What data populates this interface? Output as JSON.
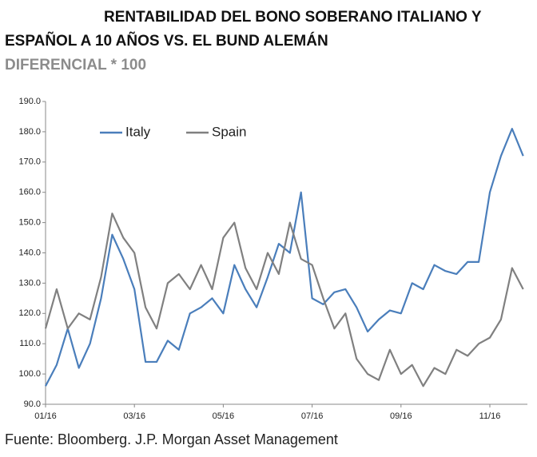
{
  "chart_data": {
    "type": "line",
    "title": [
      "RENTABILIDAD DEL BONO SOBERANO ITALIANO Y",
      "ESPAÑOL A 10 AÑOS VS. EL BUND ALEMÁN"
    ],
    "subtitle": "DIFERENCIAL * 100",
    "source": "Fuente: Bloomberg. J.P. Morgan Asset Management",
    "categories": [
      "01/16",
      null,
      null,
      null,
      null,
      null,
      null,
      null,
      "03/16",
      null,
      null,
      null,
      null,
      null,
      null,
      null,
      "05/16",
      null,
      null,
      null,
      null,
      null,
      null,
      null,
      "07/16",
      null,
      null,
      null,
      null,
      null,
      null,
      null,
      "09/16",
      null,
      null,
      null,
      null,
      null,
      null,
      null,
      "11/16",
      null,
      null,
      null
    ],
    "series": [
      {
        "name": "Italy",
        "color": "#4a7ebb",
        "values": [
          96,
          103,
          115,
          102,
          110,
          125,
          146,
          138,
          128,
          104,
          104,
          111,
          108,
          120,
          122,
          125,
          120,
          136,
          128,
          122,
          132,
          143,
          140,
          160,
          125,
          123,
          127,
          128,
          122,
          114,
          118,
          121,
          120,
          130,
          128,
          136,
          134,
          133,
          137,
          137,
          160,
          172,
          181,
          172
        ]
      },
      {
        "name": "Spain",
        "color": "#808080",
        "values": [
          115,
          128,
          115,
          120,
          118,
          132,
          153,
          145,
          140,
          122,
          115,
          130,
          133,
          128,
          136,
          128,
          145,
          150,
          135,
          128,
          140,
          133,
          150,
          138,
          136,
          125,
          115,
          120,
          105,
          100,
          98,
          108,
          100,
          103,
          96,
          102,
          100,
          108,
          106,
          110,
          112,
          118,
          135,
          128
        ]
      }
    ],
    "ylim": [
      90,
      190
    ],
    "yticks": [
      {
        "value": 90,
        "label": "90.0"
      },
      {
        "value": 100,
        "label": "100.0"
      },
      {
        "value": 110,
        "label": "110.0"
      },
      {
        "value": 120,
        "label": "120.0"
      },
      {
        "value": 130,
        "label": "130.0"
      },
      {
        "value": 140,
        "label": "140.0"
      },
      {
        "value": 150,
        "label": "150.0"
      },
      {
        "value": 160,
        "label": "160.0"
      },
      {
        "value": 170,
        "label": "170.0"
      },
      {
        "value": 180,
        "label": "180.0"
      },
      {
        "value": 190,
        "label": "190.0"
      }
    ],
    "grid": false
  }
}
